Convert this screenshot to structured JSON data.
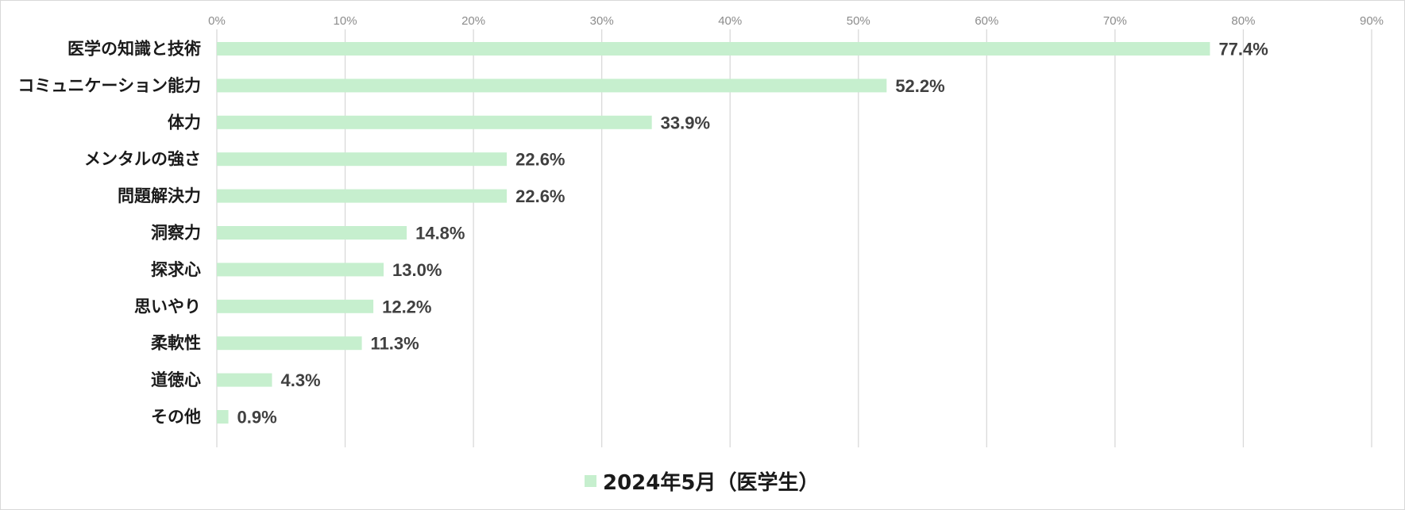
{
  "chart_data": {
    "type": "bar",
    "orientation": "horizontal",
    "categories": [
      "医学の知識と技術",
      "コミュニケーション能力",
      "体力",
      "メンタルの強さ",
      "問題解決力",
      "洞察力",
      "探求心",
      "思いやり",
      "柔軟性",
      "道徳心",
      "その他"
    ],
    "series": [
      {
        "name": "2024年5月（医学生）",
        "values": [
          77.4,
          52.2,
          33.9,
          22.6,
          22.6,
          14.8,
          13.0,
          12.2,
          11.3,
          4.3,
          0.9
        ],
        "data_labels": [
          "77.4%",
          "52.2%",
          "33.9%",
          "22.6%",
          "22.6%",
          "14.8%",
          "13.0%",
          "12.2%",
          "11.3%",
          "4.3%",
          "0.9%"
        ],
        "color": "#c6efce"
      }
    ],
    "x_ticks": [
      "0%",
      "10%",
      "20%",
      "30%",
      "40%",
      "50%",
      "60%",
      "70%",
      "80%",
      "90%"
    ],
    "xlim": [
      0,
      90
    ],
    "grid": true,
    "legend": "bottom",
    "title": "",
    "xlabel": "",
    "ylabel": ""
  }
}
